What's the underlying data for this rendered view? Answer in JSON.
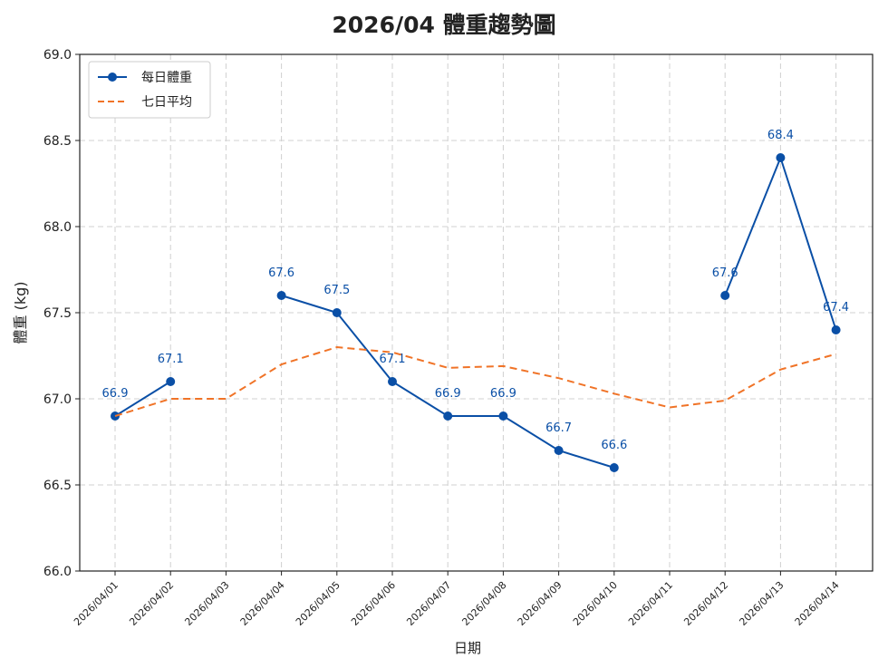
{
  "chart_data": {
    "type": "line",
    "title": "2026/04 體重趨勢圖",
    "xlabel": "日期",
    "ylabel": "體重 (kg)",
    "ylim": [
      66.0,
      69.0
    ],
    "yticks": [
      "66.0",
      "66.5",
      "67.0",
      "67.5",
      "68.0",
      "68.5",
      "69.0"
    ],
    "grid": true,
    "legend_position": "top-left",
    "categories": [
      "2026/04/01",
      "2026/04/02",
      "2026/04/03",
      "2026/04/04",
      "2026/04/05",
      "2026/04/06",
      "2026/04/07",
      "2026/04/08",
      "2026/04/09",
      "2026/04/10",
      "2026/04/11",
      "2026/04/12",
      "2026/04/13",
      "2026/04/14"
    ],
    "series": [
      {
        "name": "每日體重",
        "color": "#0a4fa6",
        "style": "solid-markers",
        "values": [
          66.9,
          67.1,
          null,
          67.6,
          67.5,
          67.1,
          66.9,
          66.9,
          66.7,
          66.6,
          null,
          67.6,
          68.4,
          67.4
        ],
        "labels": [
          "66.9",
          "67.1",
          null,
          "67.6",
          "67.5",
          "67.1",
          "66.9",
          "66.9",
          "66.7",
          "66.6",
          null,
          "67.6",
          "68.4",
          "67.4"
        ]
      },
      {
        "name": "七日平均",
        "color": "#f07327",
        "style": "dashed",
        "values": [
          66.9,
          67.0,
          67.0,
          67.2,
          67.3,
          67.27,
          67.18,
          67.19,
          67.12,
          67.03,
          66.95,
          66.99,
          67.17,
          67.26
        ]
      }
    ]
  }
}
